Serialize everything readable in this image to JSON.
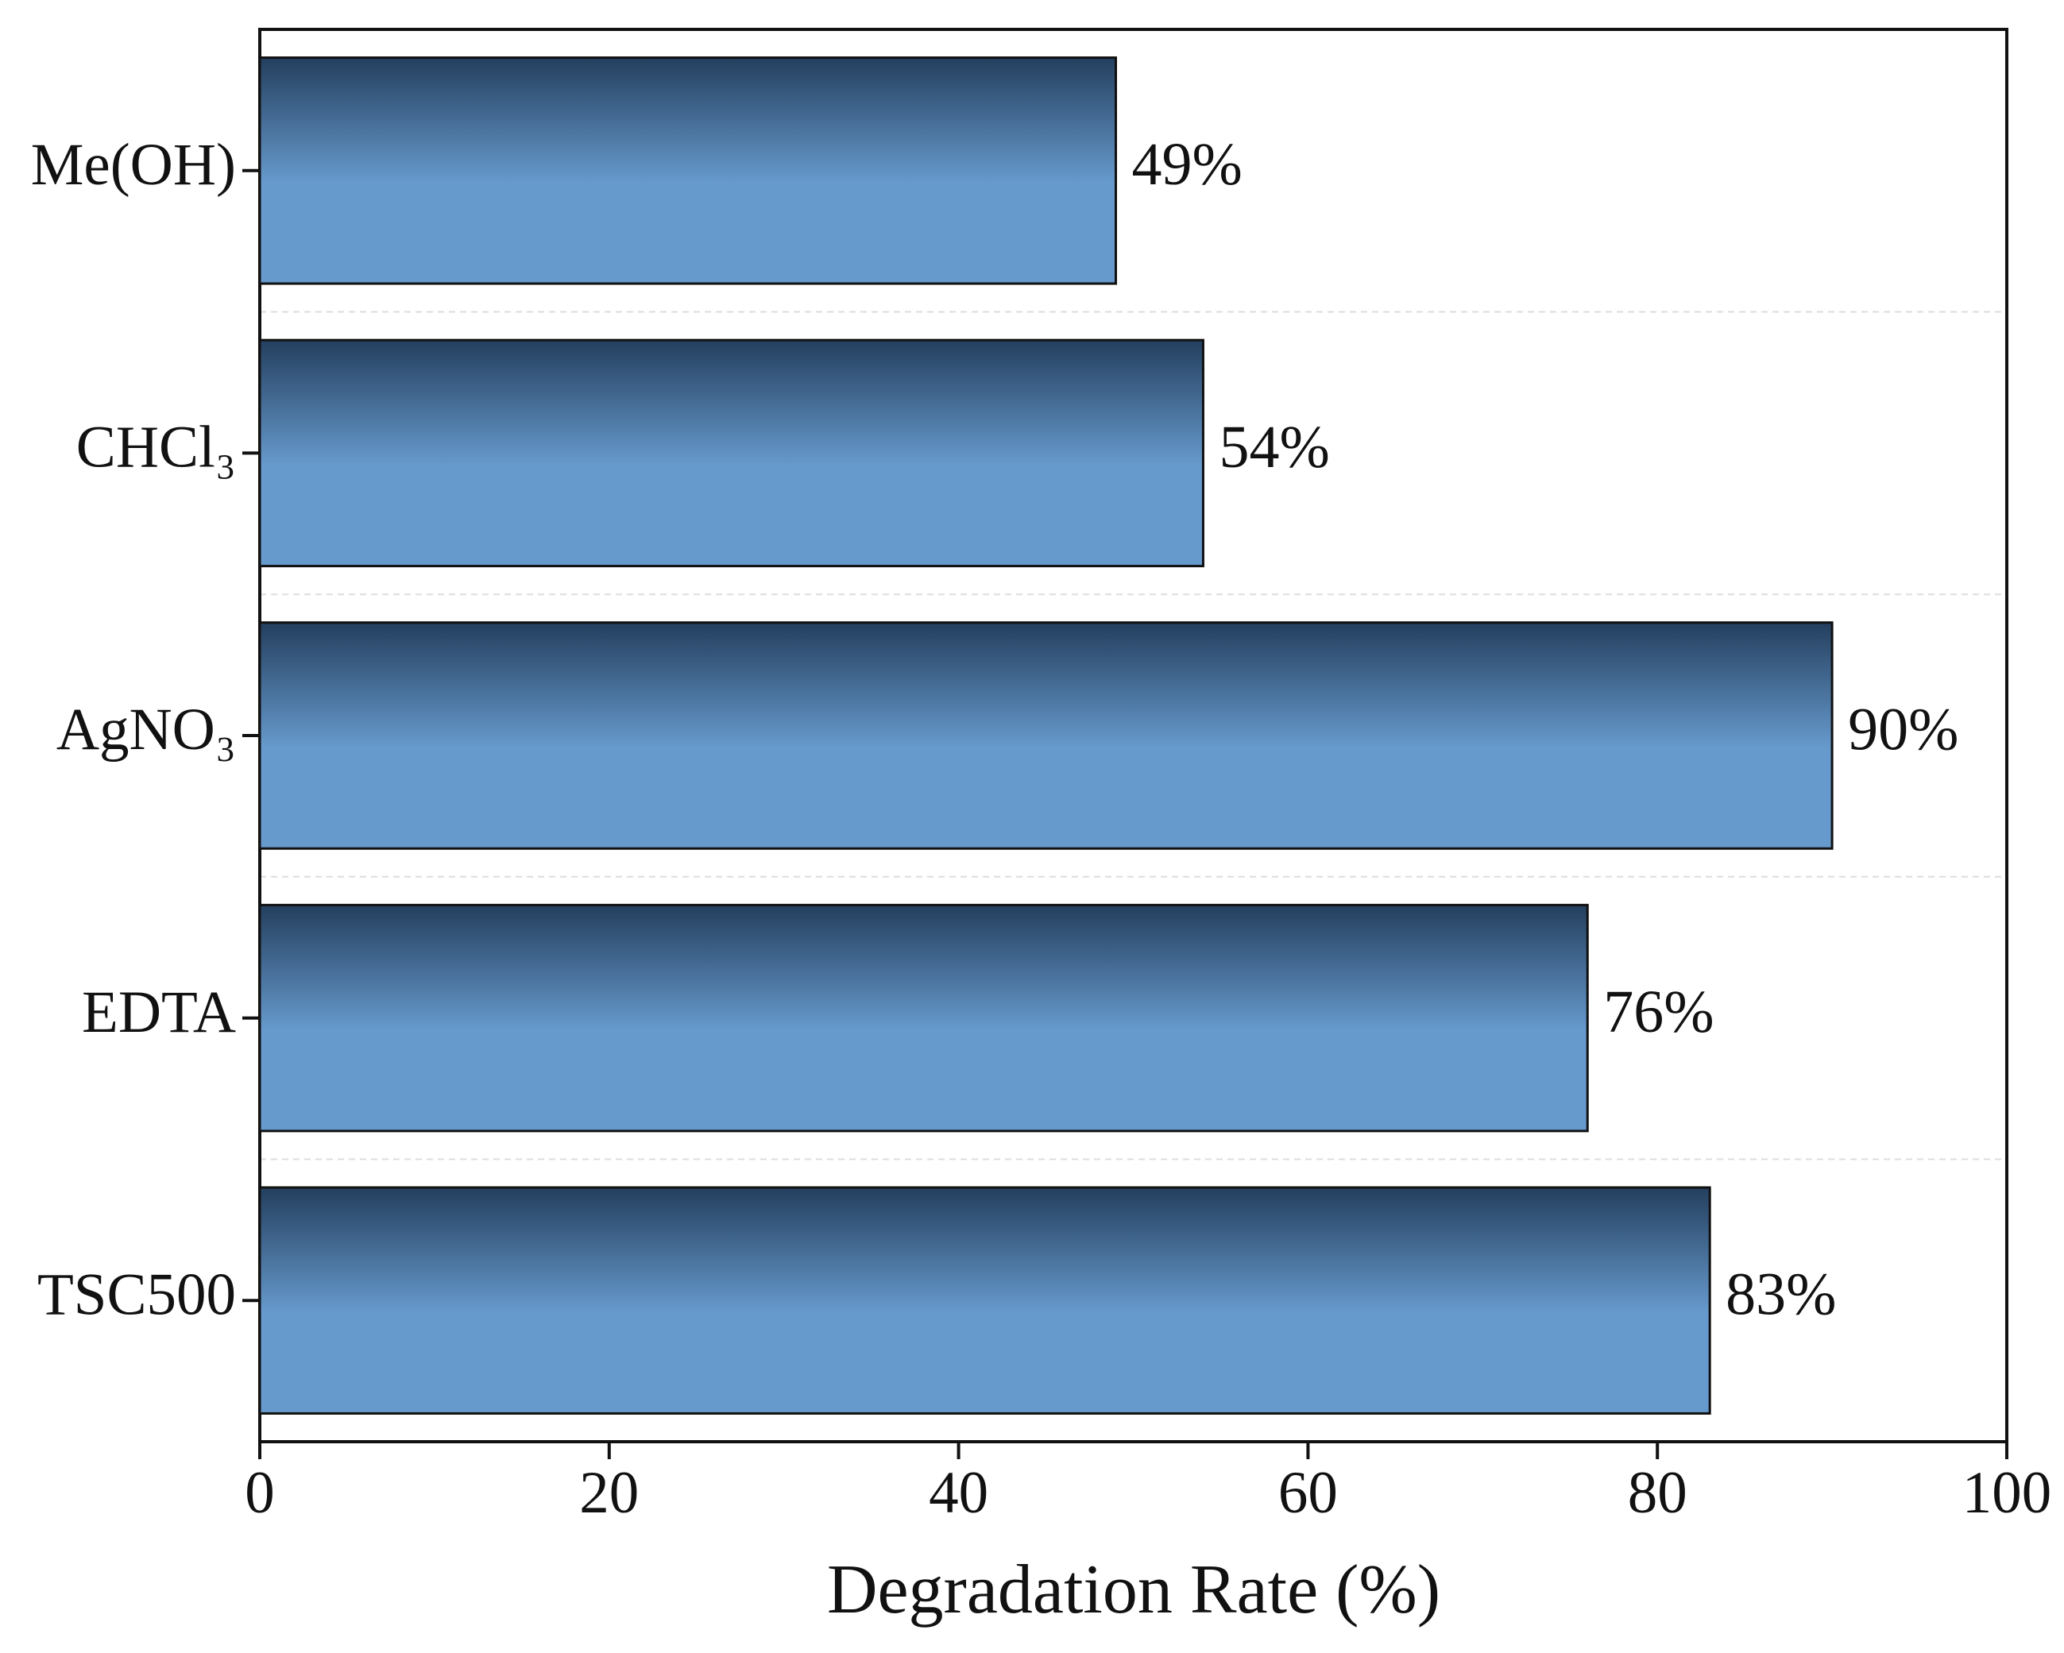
{
  "chart_data": {
    "type": "barh",
    "categories": [
      "Me(OH)",
      "CHCl₃",
      "AgNO₃",
      "EDTA",
      "TSC500"
    ],
    "values": [
      49,
      54,
      90,
      76,
      83
    ],
    "value_labels": [
      "49%",
      "54%",
      "90%",
      "76%",
      "83%"
    ],
    "xlabel": "Degradation Rate (%)",
    "xlim": [
      0,
      100
    ],
    "xticks": [
      0,
      20,
      40,
      60,
      80,
      100
    ],
    "color": [
      "#243f5e",
      "#6699cc"
    ]
  }
}
